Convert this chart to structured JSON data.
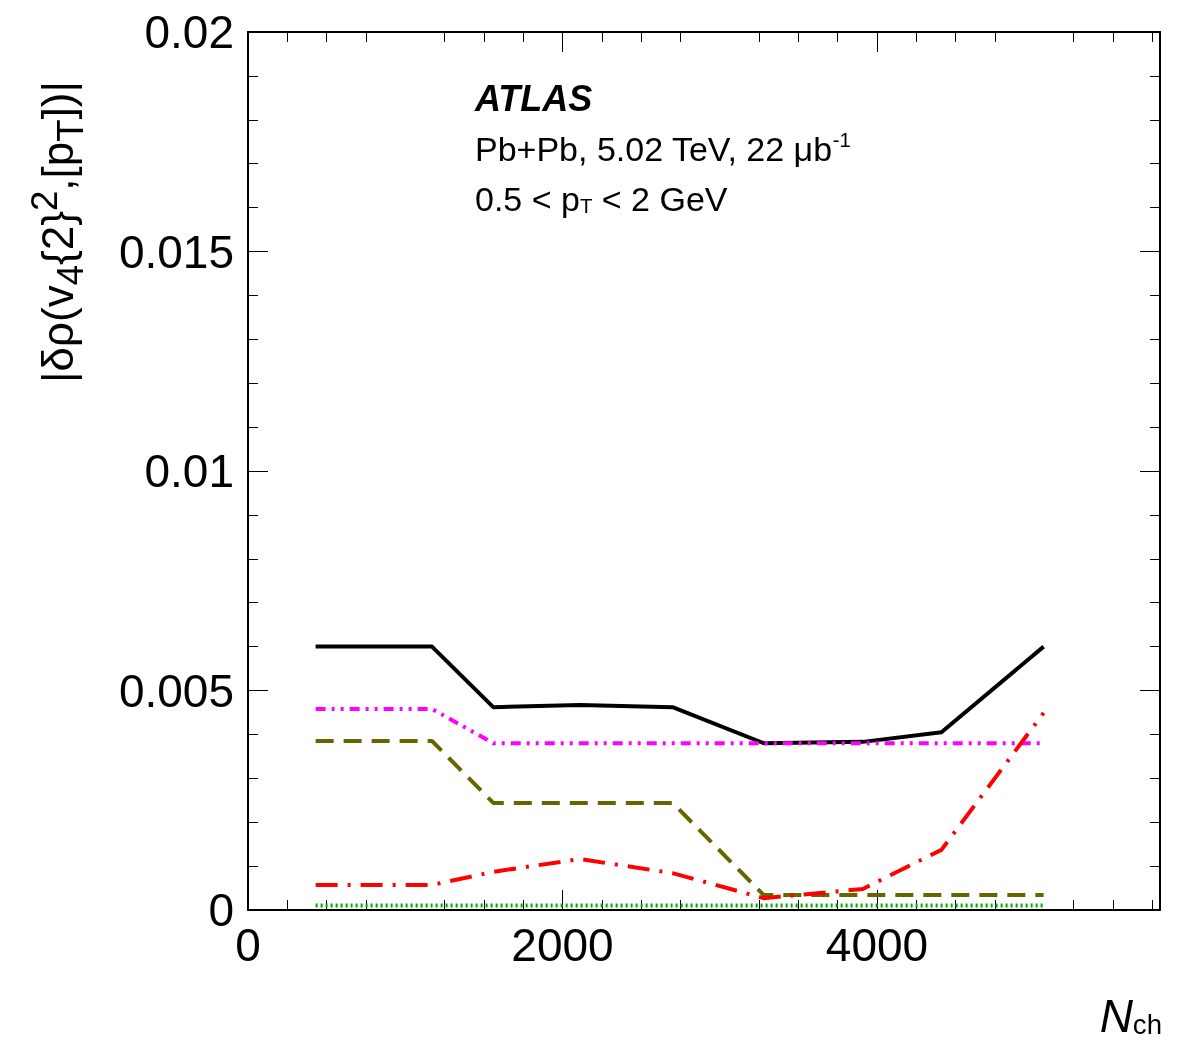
{
  "chart_data": {
    "type": "line",
    "xlabel": "N$_{ch}$",
    "ylabel": "|δρ(v$_{4}${2}$^{2}$,[p$_{T}$])|",
    "annotations": [
      "ATLAS",
      "Pb+Pb, 5.02 TeV, 22 μb$^{-1}$",
      "0.5 < p$_{T}$ < 2 GeV"
    ],
    "x": [
      430,
      1170,
      1560,
      2110,
      2700,
      3280,
      3910,
      4410,
      5060
    ],
    "series": [
      {
        "color": "#000000",
        "line_style": "solid",
        "values": [
          0.006,
          0.006,
          0.00462,
          0.00467,
          0.00462,
          0.0038,
          0.00383,
          0.00405,
          0.006
        ]
      },
      {
        "color": "#ff00ff",
        "line_style": "dashdotdot",
        "values": [
          0.00458,
          0.00458,
          0.0038,
          0.0038,
          0.0038,
          0.0038,
          0.0038,
          0.0038,
          0.0038
        ]
      },
      {
        "color": "#666600",
        "line_style": "dashed",
        "values": [
          0.00385,
          0.00385,
          0.00244,
          0.00244,
          0.00244,
          0.00034,
          0.00034,
          0.00034,
          0.00034
        ]
      },
      {
        "color": "#ff0000",
        "line_style": "dashdot",
        "values": [
          0.00057,
          0.00057,
          0.00087,
          0.00116,
          0.00084,
          0.00027,
          0.00048,
          0.00137,
          0.00449
        ]
      },
      {
        "color": "#00aa00",
        "line_style": "dotted",
        "values": [
          0.0001,
          0.0001,
          0.0001,
          0.0001,
          0.0001,
          0.0001,
          0.0001,
          0.0001,
          0.0001
        ]
      }
    ],
    "xlim": [
      0,
      5800
    ],
    "xticks": [
      0,
      2000,
      4000
    ],
    "ylim": [
      0,
      0.02
    ],
    "yticks": [
      0,
      0.005,
      0.01,
      0.015,
      0.02
    ],
    "marker": "none"
  }
}
